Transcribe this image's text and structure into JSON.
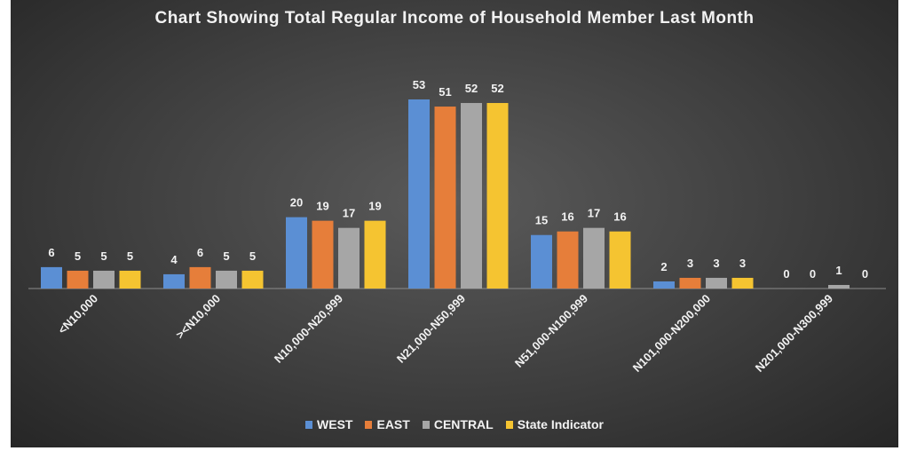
{
  "chart_data": {
    "type": "bar",
    "title": "Chart Showing Total Regular Income of Household Member Last Month",
    "categories": [
      "<N10,000",
      "><N10,000",
      "N10,000-N20,999",
      "N21,000-N50,999",
      "N51,000-N100,999",
      "N101,000-N200,000",
      "N201,000-N300,999"
    ],
    "series": [
      {
        "name": "WEST",
        "color": "#5b8fd4",
        "values": [
          6,
          4,
          20,
          53,
          15,
          2,
          0
        ]
      },
      {
        "name": "EAST",
        "color": "#e67e3a",
        "values": [
          5,
          6,
          19,
          51,
          16,
          3,
          0
        ]
      },
      {
        "name": "CENTRAL",
        "color": "#a6a6a6",
        "values": [
          5,
          5,
          17,
          52,
          17,
          3,
          1
        ]
      },
      {
        "name": "State Indicator",
        "color": "#f5c431",
        "values": [
          5,
          5,
          19,
          52,
          16,
          3,
          0
        ]
      }
    ],
    "ylim": [
      0,
      53
    ],
    "legend": "bottom",
    "grid": false
  }
}
